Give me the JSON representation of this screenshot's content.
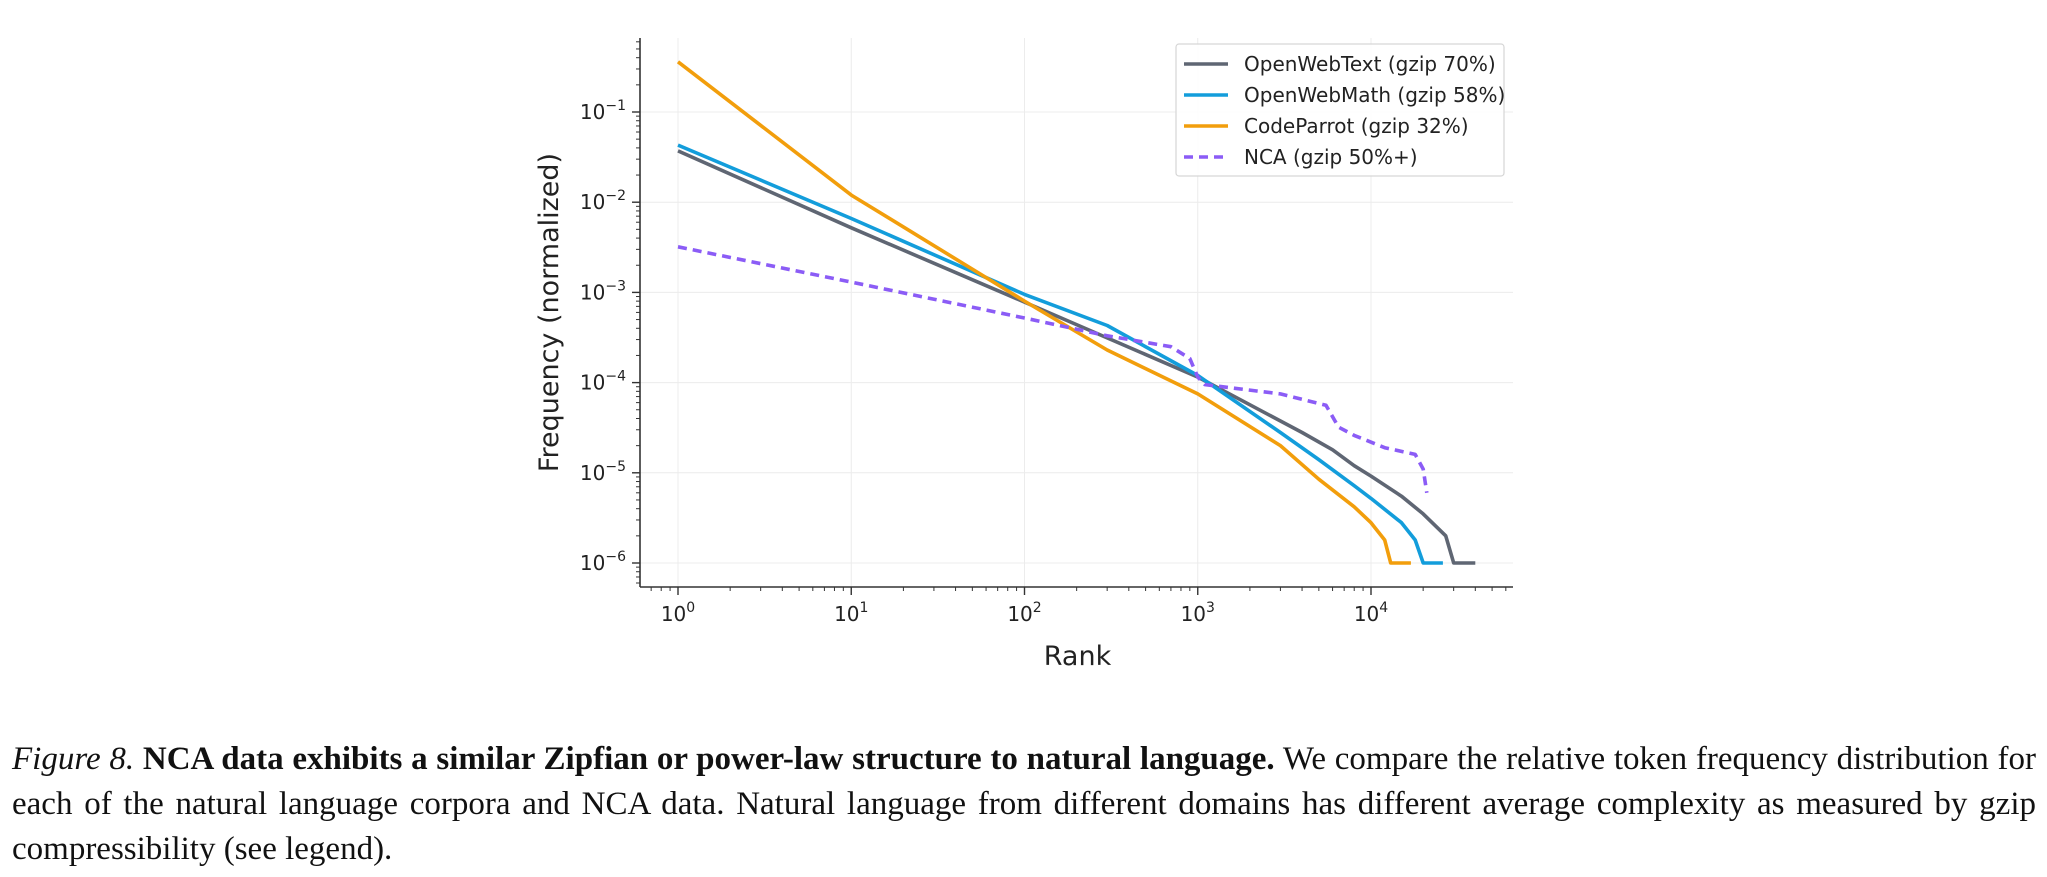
{
  "chart_data": {
    "type": "line",
    "xlabel": "Rank",
    "ylabel": "Frequency (normalized)",
    "xscale": "log",
    "yscale": "log",
    "xlim": [
      0.55,
      60000
    ],
    "ylim": [
      6e-07,
      0.8
    ],
    "grid": true,
    "legend_position": "top-right",
    "x_ticks": [
      {
        "base": "10",
        "exp": "0"
      },
      {
        "base": "10",
        "exp": "1"
      },
      {
        "base": "10",
        "exp": "2"
      },
      {
        "base": "10",
        "exp": "3"
      },
      {
        "base": "10",
        "exp": "4"
      }
    ],
    "y_ticks": [
      {
        "base": "10",
        "exp": "−6"
      },
      {
        "base": "10",
        "exp": "−5"
      },
      {
        "base": "10",
        "exp": "−4"
      },
      {
        "base": "10",
        "exp": "−3"
      },
      {
        "base": "10",
        "exp": "−2"
      },
      {
        "base": "10",
        "exp": "−1"
      }
    ],
    "series": [
      {
        "name": "OpenWebText (gzip 70%)",
        "color": "#5f6673",
        "dashed": false,
        "points": [
          [
            1,
            0.037
          ],
          [
            10,
            0.0052
          ],
          [
            100,
            0.00078
          ],
          [
            1000,
            0.000115
          ],
          [
            4000,
            2.8e-05
          ],
          [
            6000,
            1.8e-05
          ],
          [
            8000,
            1.2e-05
          ],
          [
            10000,
            9.2e-06
          ],
          [
            15000,
            5.5e-06
          ],
          [
            20000,
            3.5e-06
          ],
          [
            27000,
            2e-06
          ],
          [
            30000,
            1e-06
          ],
          [
            40000,
            1e-06
          ]
        ]
      },
      {
        "name": "OpenWebMath (gzip 58%)",
        "color": "#139ddb",
        "dashed": false,
        "points": [
          [
            1,
            0.043
          ],
          [
            10,
            0.0066
          ],
          [
            100,
            0.00095
          ],
          [
            300,
            0.00043
          ],
          [
            1000,
            0.00012
          ],
          [
            3000,
            2.8e-05
          ],
          [
            5000,
            1.4e-05
          ],
          [
            8000,
            7.2e-06
          ],
          [
            10000,
            5.2e-06
          ],
          [
            15000,
            2.8e-06
          ],
          [
            18000,
            1.8e-06
          ],
          [
            20000,
            1e-06
          ],
          [
            26000,
            1e-06
          ]
        ]
      },
      {
        "name": "CodeParrot (gzip 32%)",
        "color": "#f29e0c",
        "dashed": false,
        "points": [
          [
            1,
            0.36
          ],
          [
            10,
            0.012
          ],
          [
            100,
            0.0008
          ],
          [
            300,
            0.00023
          ],
          [
            1000,
            7.5e-05
          ],
          [
            3000,
            2e-05
          ],
          [
            5000,
            8.5e-06
          ],
          [
            8000,
            4.2e-06
          ],
          [
            10000,
            2.8e-06
          ],
          [
            12000,
            1.8e-06
          ],
          [
            13000,
            1e-06
          ],
          [
            17000,
            1e-06
          ]
        ]
      },
      {
        "name": "NCA (gzip 50%+)",
        "color": "#8b5cf6",
        "dashed": true,
        "points": [
          [
            1,
            0.0032
          ],
          [
            10,
            0.0013
          ],
          [
            100,
            0.00052
          ],
          [
            300,
            0.00033
          ],
          [
            700,
            0.00025
          ],
          [
            900,
            0.000185
          ],
          [
            1000,
            0.000115
          ],
          [
            1100,
            9.5e-05
          ],
          [
            3000,
            7.5e-05
          ],
          [
            5500,
            5.6e-05
          ],
          [
            6500,
            3.2e-05
          ],
          [
            8000,
            2.6e-05
          ],
          [
            12000,
            1.9e-05
          ],
          [
            18000,
            1.6e-05
          ],
          [
            20000,
            1.1e-05
          ],
          [
            21000,
            6e-06
          ]
        ]
      }
    ]
  },
  "caption": {
    "fig_number": "Figure 8.",
    "bold_text": "NCA data exhibits a similar Zipfian or power-law structure to natural language.",
    "body_text": "We compare the relative token frequency distribution for each of the natural language corpora and NCA data. Natural language from different domains has different average complexity as measured by gzip compressibility (see legend)."
  }
}
